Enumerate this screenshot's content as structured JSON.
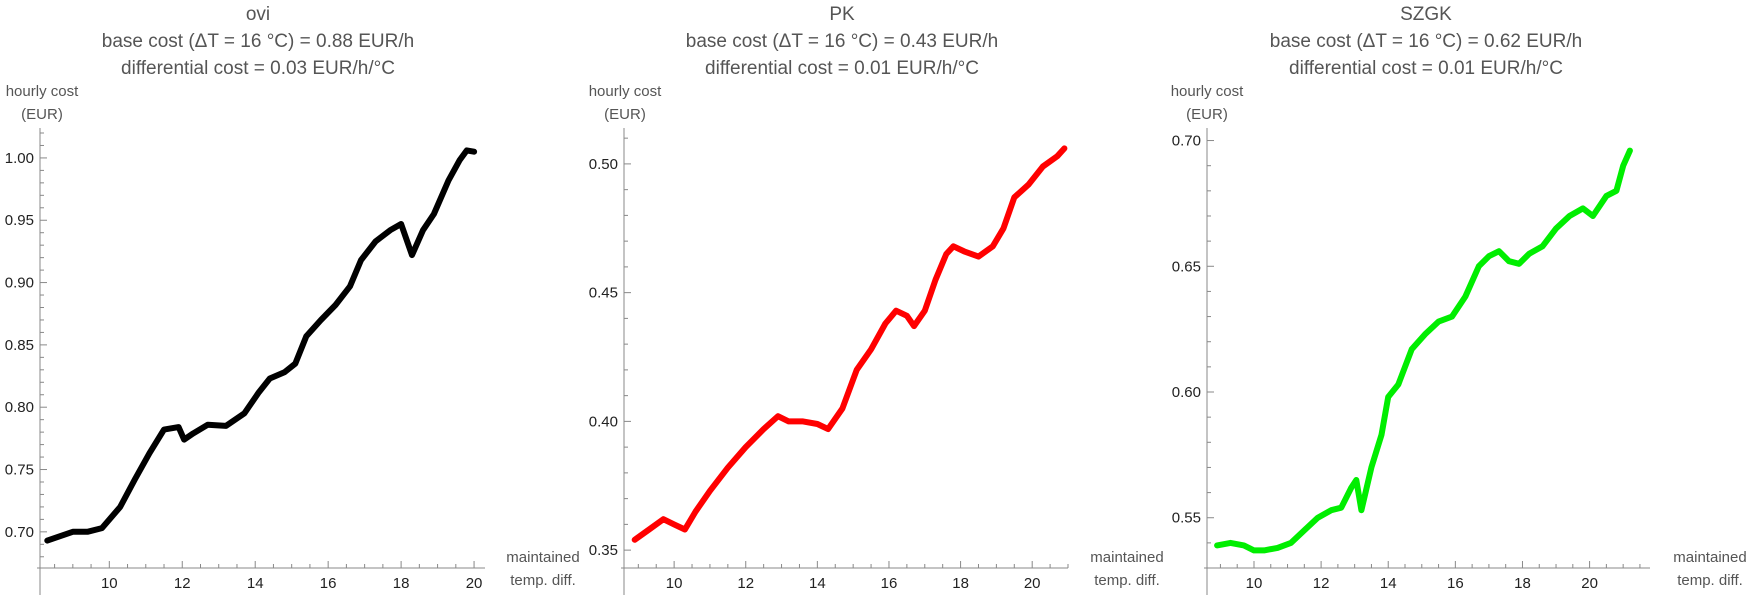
{
  "chart_data": [
    {
      "type": "line",
      "title": "ovi",
      "subtitle_1": "base cost (ΔT = 16 °C) = 0.88 EUR/h",
      "subtitle_2": "differential cost = 0.03 EUR/h/°C",
      "ylabel_1": "hourly cost",
      "ylabel_2": "(EUR)",
      "xlabel_1": "maintained",
      "xlabel_2": "temp. diff.",
      "xlim": [
        8.1,
        20.3
      ],
      "ylim": [
        0.675,
        1.02
      ],
      "xticks": [
        10,
        12,
        14,
        16,
        18,
        20
      ],
      "yticks": [
        0.7,
        0.75,
        0.8,
        0.85,
        0.9,
        0.95,
        1.0
      ],
      "ytick_labels": [
        "0.70",
        "0.75",
        "0.80",
        "0.85",
        "0.90",
        "0.95",
        "1.00"
      ],
      "color": "#000000",
      "x": [
        8.3,
        8.6,
        9.0,
        9.4,
        9.8,
        10.3,
        10.7,
        11.1,
        11.5,
        11.9,
        12.05,
        12.3,
        12.7,
        13.2,
        13.7,
        14.1,
        14.4,
        14.8,
        15.1,
        15.4,
        15.8,
        16.2,
        16.6,
        16.9,
        17.3,
        17.7,
        18.0,
        18.3,
        18.6,
        18.9,
        19.3,
        19.6,
        19.8,
        20.0
      ],
      "y": [
        0.693,
        0.696,
        0.7,
        0.7,
        0.703,
        0.72,
        0.742,
        0.763,
        0.782,
        0.784,
        0.774,
        0.779,
        0.786,
        0.785,
        0.795,
        0.812,
        0.823,
        0.828,
        0.835,
        0.857,
        0.87,
        0.882,
        0.897,
        0.918,
        0.933,
        0.942,
        0.947,
        0.922,
        0.942,
        0.955,
        0.982,
        0.998,
        1.006,
        1.005
      ]
    },
    {
      "type": "line",
      "title": "PK",
      "subtitle_1": "base cost (ΔT = 16 °C) = 0.43 EUR/h",
      "subtitle_2": "differential cost = 0.01 EUR/h/°C",
      "ylabel_1": "hourly cost",
      "ylabel_2": "(EUR)",
      "xlabel_1": "maintained",
      "xlabel_2": "temp. diff.",
      "xlim": [
        8.6,
        21.0
      ],
      "ylim": [
        0.345,
        0.512
      ],
      "xticks": [
        10,
        12,
        14,
        16,
        18,
        20
      ],
      "yticks": [
        0.35,
        0.4,
        0.45,
        0.5
      ],
      "ytick_labels": [
        "0.35",
        "0.40",
        "0.45",
        "0.50"
      ],
      "color": "#ff0000",
      "x": [
        8.9,
        9.3,
        9.7,
        10.0,
        10.3,
        10.6,
        11.0,
        11.5,
        12.0,
        12.5,
        12.9,
        13.2,
        13.6,
        14.0,
        14.3,
        14.7,
        15.1,
        15.5,
        15.9,
        16.2,
        16.5,
        16.7,
        17.0,
        17.3,
        17.6,
        17.8,
        18.1,
        18.5,
        18.9,
        19.2,
        19.5,
        19.9,
        20.3,
        20.7,
        20.9
      ],
      "y": [
        0.354,
        0.358,
        0.362,
        0.36,
        0.358,
        0.365,
        0.373,
        0.382,
        0.39,
        0.397,
        0.402,
        0.4,
        0.4,
        0.399,
        0.397,
        0.405,
        0.42,
        0.428,
        0.438,
        0.443,
        0.441,
        0.437,
        0.443,
        0.455,
        0.465,
        0.468,
        0.466,
        0.464,
        0.468,
        0.475,
        0.487,
        0.492,
        0.499,
        0.503,
        0.506
      ]
    },
    {
      "type": "line",
      "title": "SZGK",
      "subtitle_1": "base cost (ΔT = 16 °C) = 0.62 EUR/h",
      "subtitle_2": "differential cost = 0.01 EUR/h/°C",
      "ylabel_1": "hourly cost",
      "ylabel_2": "(EUR)",
      "xlabel_1": "maintained",
      "xlabel_2": "temp. diff.",
      "xlim": [
        8.6,
        21.8
      ],
      "ylim": [
        0.532,
        0.703
      ],
      "xticks": [
        10,
        12,
        14,
        16,
        18,
        20
      ],
      "yticks": [
        0.55,
        0.6,
        0.65,
        0.7
      ],
      "ytick_labels": [
        "0.55",
        "0.60",
        "0.65",
        "0.70"
      ],
      "color": "#00ee00",
      "x": [
        8.9,
        9.3,
        9.7,
        10.0,
        10.3,
        10.7,
        11.1,
        11.5,
        11.9,
        12.3,
        12.6,
        12.9,
        13.05,
        13.2,
        13.5,
        13.8,
        14.0,
        14.3,
        14.7,
        15.1,
        15.5,
        15.9,
        16.3,
        16.7,
        17.0,
        17.3,
        17.6,
        17.9,
        18.2,
        18.6,
        19.0,
        19.4,
        19.8,
        20.1,
        20.5,
        20.8,
        21.0,
        21.2
      ],
      "y": [
        0.539,
        0.54,
        0.539,
        0.537,
        0.537,
        0.538,
        0.54,
        0.545,
        0.55,
        0.553,
        0.554,
        0.562,
        0.565,
        0.553,
        0.57,
        0.583,
        0.598,
        0.603,
        0.617,
        0.623,
        0.628,
        0.63,
        0.638,
        0.65,
        0.654,
        0.656,
        0.652,
        0.651,
        0.655,
        0.658,
        0.665,
        0.67,
        0.673,
        0.67,
        0.678,
        0.68,
        0.69,
        0.696
      ]
    }
  ]
}
